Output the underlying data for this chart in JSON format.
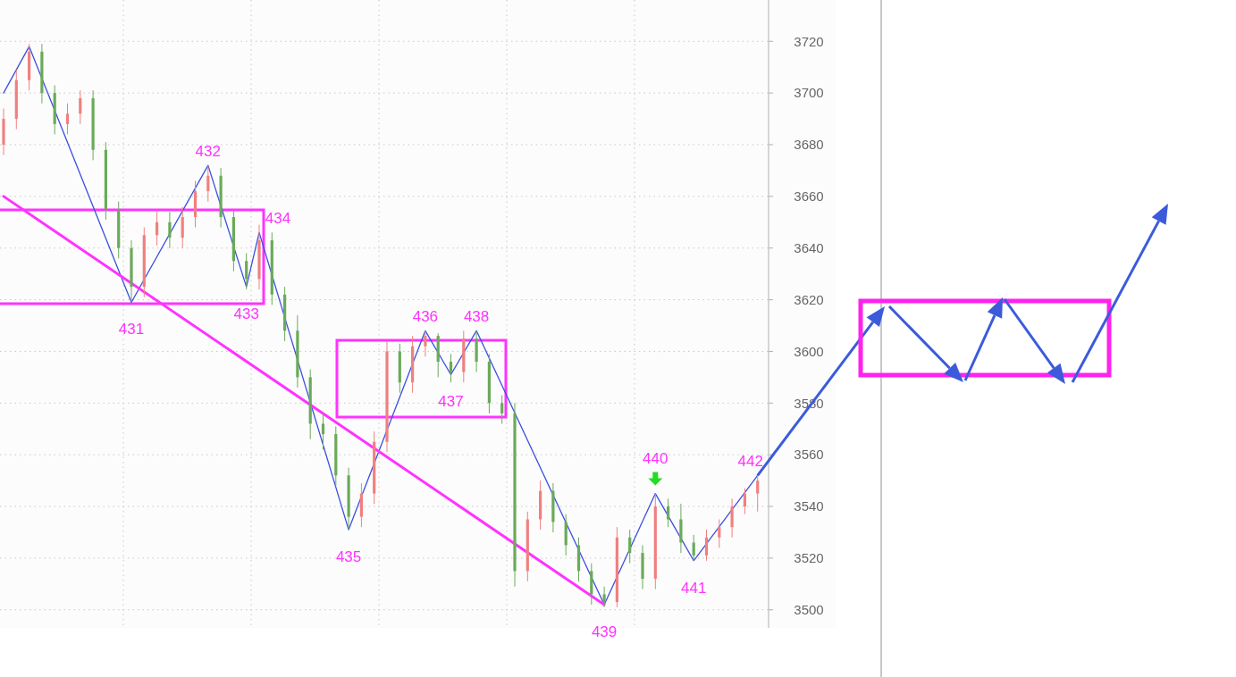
{
  "chart_data": {
    "type": "candlestick",
    "categories": [
      null,
      null,
      null,
      null,
      null,
      null,
      null,
      null,
      null,
      null,
      null,
      null,
      null,
      null,
      null,
      null,
      null,
      null,
      null,
      null,
      null,
      null,
      null,
      null,
      null,
      null,
      null,
      null,
      null,
      null,
      null,
      null,
      null,
      null,
      null,
      null,
      null,
      null,
      null,
      null,
      null,
      null,
      null,
      null,
      null,
      null,
      null,
      null,
      null,
      null,
      null,
      null,
      null,
      null,
      null,
      null,
      null,
      null,
      null,
      null
    ],
    "ohlc": [
      [
        3680,
        3694,
        3676,
        3690
      ],
      [
        3690,
        3709,
        3686,
        3705
      ],
      [
        3705,
        3719,
        3701,
        3716
      ],
      [
        3716,
        3719,
        3696,
        3700
      ],
      [
        3700,
        3703,
        3684,
        3688
      ],
      [
        3688,
        3696,
        3684,
        3692
      ],
      [
        3692,
        3701,
        3688,
        3698
      ],
      [
        3698,
        3701,
        3674,
        3678
      ],
      [
        3678,
        3681,
        3651,
        3655
      ],
      [
        3655,
        3658,
        3636,
        3640
      ],
      [
        3640,
        3643,
        3619,
        3625
      ],
      [
        3625,
        3648,
        3621,
        3645
      ],
      [
        3645,
        3654,
        3641,
        3650
      ],
      [
        3650,
        3654,
        3640,
        3644
      ],
      [
        3644,
        3656,
        3640,
        3652
      ],
      [
        3652,
        3666,
        3648,
        3662
      ],
      [
        3662,
        3672,
        3658,
        3668
      ],
      [
        3668,
        3671,
        3648,
        3652
      ],
      [
        3652,
        3655,
        3631,
        3635
      ],
      [
        3635,
        3638,
        3624,
        3628
      ],
      [
        3628,
        3649,
        3624,
        3643
      ],
      [
        3643,
        3646,
        3618,
        3622
      ],
      [
        3622,
        3625,
        3604,
        3608
      ],
      [
        3608,
        3614,
        3586,
        3590
      ],
      [
        3590,
        3593,
        3566,
        3572
      ],
      [
        3572,
        3576,
        3562,
        3568
      ],
      [
        3568,
        3571,
        3548,
        3552
      ],
      [
        3552,
        3555,
        3531,
        3536
      ],
      [
        3536,
        3549,
        3532,
        3545
      ],
      [
        3545,
        3569,
        3541,
        3565
      ],
      [
        3565,
        3604,
        3561,
        3600
      ],
      [
        3600,
        3603,
        3584,
        3588
      ],
      [
        3588,
        3606,
        3584,
        3602
      ],
      [
        3602,
        3608,
        3598,
        3606
      ],
      [
        3606,
        3607,
        3590,
        3596
      ],
      [
        3596,
        3599,
        3588,
        3592
      ],
      [
        3592,
        3608,
        3588,
        3605
      ],
      [
        3605,
        3608,
        3592,
        3596
      ],
      [
        3596,
        3599,
        3576,
        3580
      ],
      [
        3580,
        3583,
        3572,
        3576
      ],
      [
        3576,
        3580,
        3509,
        3515
      ],
      [
        3515,
        3538,
        3511,
        3535
      ],
      [
        3535,
        3550,
        3531,
        3546
      ],
      [
        3546,
        3549,
        3530,
        3534
      ],
      [
        3534,
        3537,
        3521,
        3525
      ],
      [
        3525,
        3528,
        3511,
        3515
      ],
      [
        3515,
        3518,
        3502,
        3506
      ],
      [
        3506,
        3509,
        3501,
        3503
      ],
      [
        3503,
        3532,
        3501,
        3528
      ],
      [
        3528,
        3531,
        3518,
        3522
      ],
      [
        3522,
        3525,
        3508,
        3512
      ],
      [
        3512,
        3545,
        3508,
        3540
      ],
      [
        3540,
        3543,
        3532,
        3535
      ],
      [
        3535,
        3541,
        3522,
        3526
      ],
      [
        3526,
        3529,
        3519,
        3521
      ],
      [
        3521,
        3531,
        3519,
        3528
      ],
      [
        3528,
        3535,
        3524,
        3532
      ],
      [
        3532,
        3543,
        3528,
        3540
      ],
      [
        3540,
        3547,
        3537,
        3545
      ],
      [
        3545,
        3552,
        3538,
        3550
      ]
    ],
    "colors": [
      "#f08080",
      "#f08080",
      "#f08080",
      "#6aaa5a",
      "#6aaa5a",
      "#f08080",
      "#f08080",
      "#6aaa5a",
      "#6aaa5a",
      "#6aaa5a",
      "#6aaa5a",
      "#f08080",
      "#f08080",
      "#6aaa5a",
      "#f08080",
      "#f08080",
      "#f08080",
      "#6aaa5a",
      "#6aaa5a",
      "#6aaa5a",
      "#f08080",
      "#6aaa5a",
      "#6aaa5a",
      "#6aaa5a",
      "#6aaa5a",
      "#6aaa5a",
      "#6aaa5a",
      "#6aaa5a",
      "#f08080",
      "#f08080",
      "#f08080",
      "#6aaa5a",
      "#f08080",
      "#f08080",
      "#6aaa5a",
      "#6aaa5a",
      "#f08080",
      "#6aaa5a",
      "#6aaa5a",
      "#6aaa5a",
      "#6aaa5a",
      "#f08080",
      "#f08080",
      "#6aaa5a",
      "#6aaa5a",
      "#6aaa5a",
      "#6aaa5a",
      "#6aaa5a",
      "#f08080",
      "#6aaa5a",
      "#6aaa5a",
      "#f08080",
      "#6aaa5a",
      "#6aaa5a",
      "#6aaa5a",
      "#f08080",
      "#f08080",
      "#f08080",
      "#f08080",
      "#f08080"
    ],
    "series": [
      {
        "type": "line",
        "color": "#3a4fe0",
        "values": [
          3700,
          null,
          3718,
          null,
          null,
          null,
          null,
          null,
          null,
          null,
          3619,
          null,
          null,
          null,
          null,
          null,
          3672,
          null,
          null,
          3625,
          3646,
          null,
          null,
          null,
          null,
          null,
          null,
          3531,
          null,
          null,
          null,
          null,
          null,
          3608,
          null,
          3591,
          null,
          3608,
          null,
          null,
          null,
          null,
          null,
          null,
          null,
          null,
          null,
          3502,
          null,
          null,
          null,
          3545,
          null,
          null,
          3519,
          null,
          null,
          null,
          null,
          3552
        ]
      },
      {
        "type": "line",
        "color": "#ff33ff",
        "values": [
          3660,
          null,
          null,
          null,
          null,
          null,
          null,
          null,
          null,
          null,
          null,
          null,
          null,
          null,
          null,
          null,
          null,
          null,
          null,
          null,
          null,
          null,
          null,
          null,
          null,
          null,
          null,
          null,
          null,
          null,
          null,
          null,
          null,
          null,
          null,
          null,
          null,
          null,
          null,
          null,
          null,
          null,
          null,
          null,
          null,
          null,
          null,
          3502,
          null,
          null,
          null,
          null,
          null,
          null,
          null,
          null,
          null,
          null,
          null,
          null
        ]
      }
    ],
    "annotations": [
      "431",
      "432",
      "433",
      "434",
      "435",
      "436",
      "437",
      "438",
      "439",
      "440",
      "441",
      "442"
    ],
    "ylim": [
      3493,
      3736
    ],
    "yticks": [
      3500,
      3520,
      3540,
      3560,
      3580,
      3600,
      3620,
      3640,
      3660,
      3680,
      3700,
      3720
    ],
    "tick_labels": "y",
    "grid": true
  }
}
